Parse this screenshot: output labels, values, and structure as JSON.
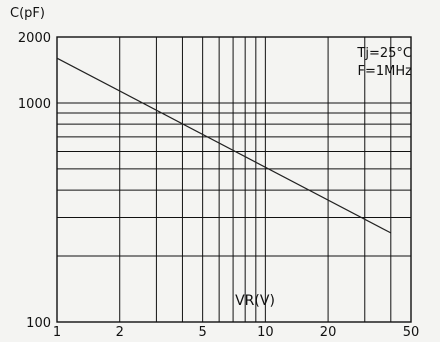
{
  "chart_data": {
    "type": "line",
    "ylabel": "C(pF)",
    "xlabel": "VR(V)",
    "x_scale": "log",
    "y_scale": "log",
    "xlim": [
      1,
      50
    ],
    "ylim": [
      100,
      2000
    ],
    "x_ticks": [
      1,
      2,
      5,
      10,
      20,
      50
    ],
    "x_tick_labels": [
      "1",
      "2",
      "5",
      "10",
      "20",
      "50"
    ],
    "y_ticks": [
      100,
      1000,
      2000
    ],
    "y_tick_labels": [
      "100",
      "1000",
      "2000"
    ],
    "annotations": [
      "Tj=25°C",
      "F=1MHz"
    ],
    "grid": true,
    "series": [
      {
        "x": [
          1,
          40
        ],
        "y": [
          1600,
          255
        ]
      }
    ]
  }
}
